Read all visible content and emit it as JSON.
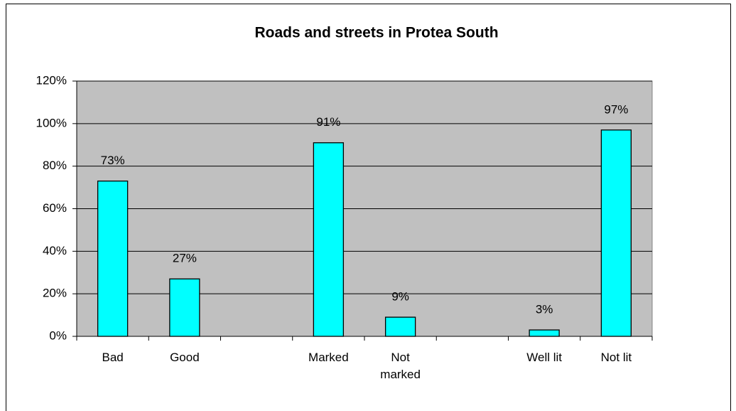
{
  "chart_data": {
    "type": "bar",
    "title": "Roads and streets in Protea South",
    "categories": [
      "Bad",
      "Good",
      null,
      "Marked",
      "Not marked",
      null,
      "Well lit",
      "Not lit"
    ],
    "values": [
      73,
      27,
      null,
      91,
      9,
      null,
      3,
      97
    ],
    "value_labels": [
      "73%",
      "27%",
      null,
      "91%",
      "9%",
      null,
      "3%",
      "97%"
    ],
    "color": "#00ffff",
    "plot_background": "#c0c0c0",
    "ylim": [
      0,
      120
    ],
    "yticks": [
      {
        "value": 0,
        "label": "0%"
      },
      {
        "value": 20,
        "label": "20%"
      },
      {
        "value": 40,
        "label": "40%"
      },
      {
        "value": 60,
        "label": "60%"
      },
      {
        "value": 80,
        "label": "80%"
      },
      {
        "value": 100,
        "label": "100%"
      },
      {
        "value": 120,
        "label": "120%"
      }
    ],
    "grid": true
  }
}
